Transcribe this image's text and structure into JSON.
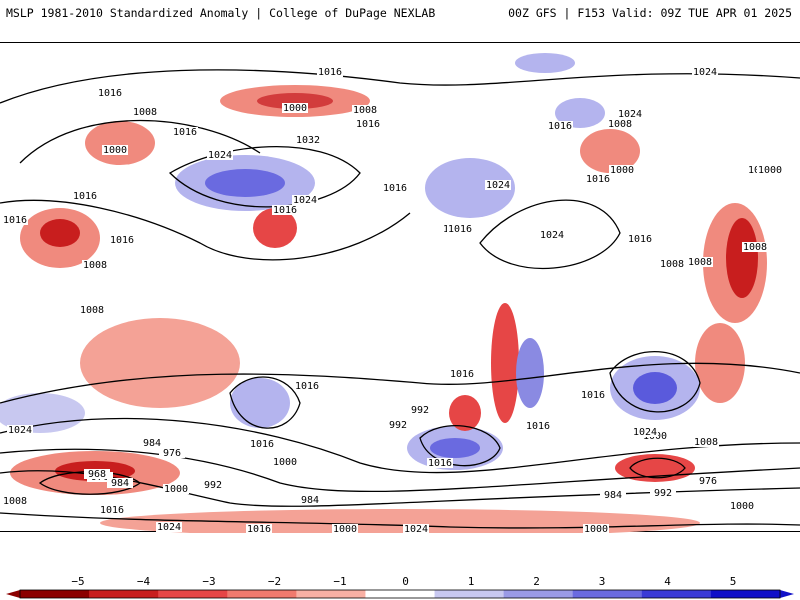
{
  "header": {
    "left": "MSLP 1981-2010 Standardized Anomaly | College of DuPage NEXLAB",
    "right": "00Z GFS | F153 Valid: 09Z TUE APR 01 2025"
  },
  "map": {
    "isobar_labels": [
      "1016",
      "1016",
      "1024",
      "1008",
      "1000",
      "1008",
      "1016",
      "1016",
      "1000",
      "1024",
      "1032",
      "1016",
      "1016",
      "1016",
      "1024",
      "1016",
      "1024",
      "1016",
      "1016",
      "1008",
      "1000",
      "1016",
      "1024",
      "1008",
      "1016",
      "1016",
      "1024",
      "1016",
      "1000",
      "1016",
      "1008",
      "1008",
      "1008",
      "1016",
      "1016",
      "1016",
      "1008",
      "992",
      "984",
      "976",
      "1024",
      "1016",
      "1000",
      "992",
      "1016",
      "1016",
      "1008",
      "1000",
      "976",
      "984",
      "992",
      "1000",
      "1024",
      "1016",
      "984",
      "1016",
      "1024",
      "1000",
      "976",
      "968",
      "984",
      "1000",
      "992",
      "1016",
      "1024",
      "1000",
      "1008"
    ],
    "highs_lows_note": ""
  },
  "colorbar": {
    "ticks": [
      "−5",
      "−4",
      "−3",
      "−2",
      "−1",
      "0",
      "1",
      "2",
      "3",
      "4",
      "5"
    ],
    "colors": [
      "#8b0000",
      "#c81e1e",
      "#e64646",
      "#f07a6e",
      "#f8b0a4",
      "#ffffff",
      "#c8c8f0",
      "#9a9ae6",
      "#6a6ae0",
      "#3a3ad6",
      "#1010c8"
    ]
  }
}
